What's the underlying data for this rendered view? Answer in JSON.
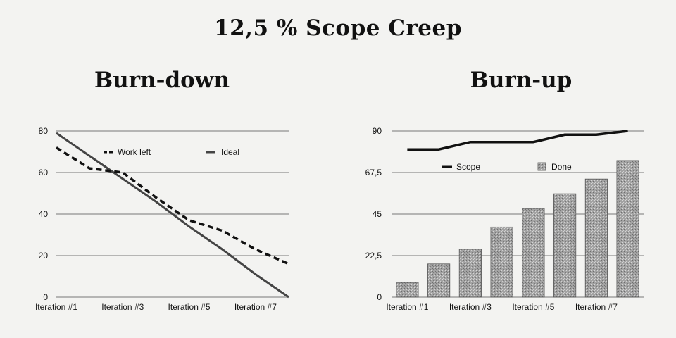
{
  "title": "12,5 % Scope Creep",
  "chart_data": [
    {
      "type": "line",
      "title": "Burn-down",
      "categories": [
        "Iteration #1",
        "",
        "Iteration #3",
        "",
        "Iteration #5",
        "",
        "Iteration #7",
        ""
      ],
      "series": [
        {
          "name": "Work left",
          "style": "dashed",
          "values": [
            72,
            62,
            60,
            48,
            37,
            32,
            23,
            16
          ]
        },
        {
          "name": "Ideal",
          "style": "solid",
          "values": [
            79,
            68,
            57,
            46,
            34,
            23,
            11,
            0
          ]
        }
      ],
      "y_ticks": [
        "0",
        "20",
        "40",
        "60",
        "80"
      ],
      "ylim": [
        0,
        80
      ],
      "grid": true,
      "legend_position": "top-right",
      "colors": {
        "work_left": "#111111",
        "ideal": "#444444",
        "grid": "#777777"
      }
    },
    {
      "type": "bar",
      "title": "Burn-up",
      "categories": [
        "Iteration #1",
        "",
        "Iteration #3",
        "",
        "Iteration #5",
        "",
        "Iteration #7",
        ""
      ],
      "series": [
        {
          "name": "Scope",
          "kind": "line",
          "values": [
            80,
            80,
            84,
            84,
            84,
            88,
            88,
            90
          ]
        },
        {
          "name": "Done",
          "kind": "bar",
          "values": [
            8,
            18,
            26,
            38,
            48,
            56,
            64,
            74
          ]
        }
      ],
      "y_ticks": [
        "0",
        "22,5",
        "45",
        "67,5",
        "90"
      ],
      "ylim": [
        0,
        90
      ],
      "grid": true,
      "legend_position": "top",
      "colors": {
        "scope": "#111111",
        "done": "#9a9a9a",
        "grid": "#777777"
      }
    }
  ]
}
